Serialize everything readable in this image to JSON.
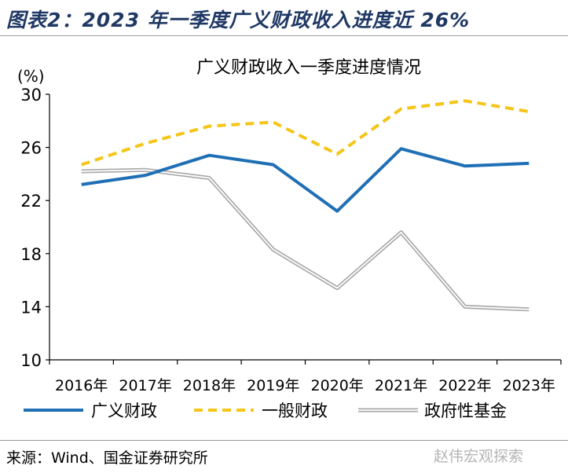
{
  "figure": {
    "title": "图表2：2023 年一季度广义财政收入进度近 26%",
    "source": "来源：Wind、国金证券研究所",
    "watermark": "赵伟宏观探索"
  },
  "chart_data": {
    "type": "line",
    "title": "广义财政收入一季度进度情况",
    "ylabel": "(%)",
    "xlabel": "",
    "categories": [
      "2016年",
      "2017年",
      "2018年",
      "2019年",
      "2020年",
      "2021年",
      "2022年",
      "2023年"
    ],
    "ylim": [
      10,
      30
    ],
    "yticks": [
      10,
      14,
      18,
      22,
      26,
      30
    ],
    "grid": false,
    "legend_position": "bottom",
    "series": [
      {
        "name": "广义财政",
        "values": [
          23.2,
          23.9,
          25.4,
          24.7,
          21.2,
          25.9,
          24.6,
          24.8
        ],
        "color": "#1f6fb5",
        "style": "solid"
      },
      {
        "name": "一般财政",
        "values": [
          24.7,
          26.3,
          27.6,
          27.9,
          25.5,
          28.9,
          29.5,
          28.7
        ],
        "color": "#f5c518",
        "style": "dashed"
      },
      {
        "name": "政府性基金",
        "values": [
          24.2,
          24.3,
          23.7,
          18.3,
          15.4,
          19.6,
          14.0,
          13.8
        ],
        "color": "#a6a6a6",
        "style": "double"
      }
    ]
  }
}
